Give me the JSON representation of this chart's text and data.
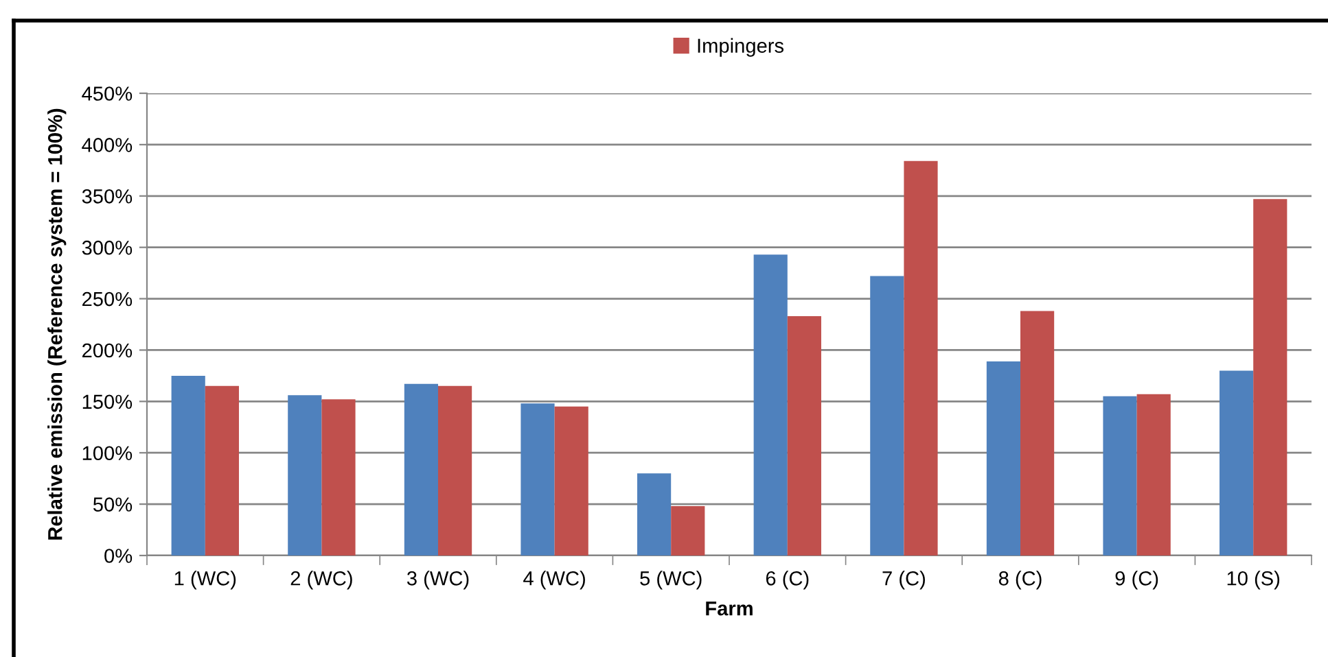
{
  "chart_data": {
    "type": "bar",
    "xlabel": "Farm",
    "ylabel": "Relative emission (Reference system = 100%)",
    "categories": [
      "1 (WC)",
      "2 (WC)",
      "3 (WC)",
      "4 (WC)",
      "5 (WC)",
      "6 (C)",
      "7 (C)",
      "8 (C)",
      "9 (C)",
      "10 (S)"
    ],
    "series": [
      {
        "color": "#4f81bd",
        "values": [
          175,
          156,
          167,
          148,
          80,
          293,
          272,
          189,
          155,
          180
        ]
      },
      {
        "name": "Impingers",
        "color": "#c0504d",
        "values": [
          165,
          152,
          165,
          145,
          48,
          233,
          384,
          238,
          157,
          347
        ]
      }
    ],
    "ylim": [
      0,
      450
    ],
    "yticks": [
      {
        "value": 0,
        "label": "0%"
      },
      {
        "value": 50,
        "label": "50%"
      },
      {
        "value": 100,
        "label": "100%"
      },
      {
        "value": 150,
        "label": "150%"
      },
      {
        "value": 200,
        "label": "200%"
      },
      {
        "value": 250,
        "label": "250%"
      },
      {
        "value": 300,
        "label": "300%"
      },
      {
        "value": 350,
        "label": "350%"
      },
      {
        "value": 400,
        "label": "400%"
      },
      {
        "value": 450,
        "label": "450%"
      }
    ],
    "grid": "y",
    "legend": "top"
  }
}
